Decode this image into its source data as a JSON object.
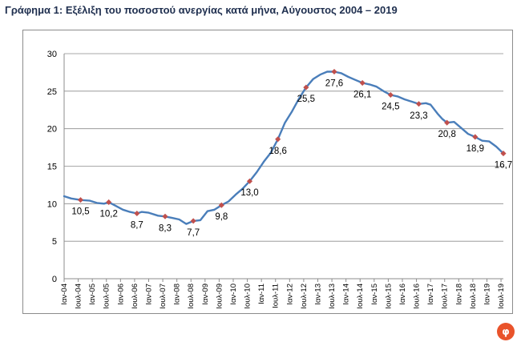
{
  "chart_data": {
    "type": "line",
    "title": "Γράφημα 1: Εξέλιξη του ποσοστού ανεργίας κατά μήνα, Αύγουστος 2004 – 2019",
    "xlabel": "",
    "ylabel": "",
    "ylim": [
      0,
      30
    ],
    "yticks": [
      0,
      5,
      10,
      15,
      20,
      25,
      30
    ],
    "grid": true,
    "legend": "none",
    "line_color": "#4a7eba",
    "marker_color": "#c0504d",
    "x_tick_labels": [
      "Ιαν-04",
      "Ιουλ-04",
      "Ιαν-05",
      "Ιουλ-05",
      "Ιαν-06",
      "Ιουλ-06",
      "Ιαν-07",
      "Ιουλ-07",
      "Ιαν-08",
      "Ιουλ-08",
      "Ιαν-09",
      "Ιουλ-09",
      "Ιαν-10",
      "Ιουλ-10",
      "Ιαν-11",
      "Ιουλ-11",
      "Ιαν-12",
      "Ιουλ-12",
      "Ιαν-13",
      "Ιουλ-13",
      "Ιαν-14",
      "Ιουλ-14",
      "Ιαν-15",
      "Ιουλ-15",
      "Ιαν-16",
      "Ιουλ-16",
      "Ιαν-17",
      "Ιουλ-17",
      "Ιαν-18",
      "Ιουλ-18",
      "Ιαν-19",
      "Ιουλ-19"
    ],
    "anchor_points": [
      [
        "2004-01",
        11.0
      ],
      [
        "2004-04",
        10.7
      ],
      [
        "2004-08",
        10.5
      ],
      [
        "2004-12",
        10.4
      ],
      [
        "2005-03",
        10.1
      ],
      [
        "2005-06",
        10.0
      ],
      [
        "2005-08",
        10.2
      ],
      [
        "2005-11",
        9.7
      ],
      [
        "2006-02",
        9.2
      ],
      [
        "2006-05",
        8.9
      ],
      [
        "2006-08",
        8.7
      ],
      [
        "2006-10",
        8.9
      ],
      [
        "2007-01",
        8.8
      ],
      [
        "2007-05",
        8.4
      ],
      [
        "2007-08",
        8.3
      ],
      [
        "2007-11",
        8.1
      ],
      [
        "2008-02",
        7.9
      ],
      [
        "2008-05",
        7.3
      ],
      [
        "2008-08",
        7.7
      ],
      [
        "2008-11",
        7.8
      ],
      [
        "2009-02",
        9.0
      ],
      [
        "2009-05",
        9.2
      ],
      [
        "2009-08",
        9.8
      ],
      [
        "2009-11",
        10.3
      ],
      [
        "2010-02",
        11.2
      ],
      [
        "2010-05",
        12.0
      ],
      [
        "2010-08",
        13.0
      ],
      [
        "2010-11",
        14.2
      ],
      [
        "2011-02",
        15.6
      ],
      [
        "2011-05",
        16.8
      ],
      [
        "2011-08",
        18.6
      ],
      [
        "2011-11",
        20.8
      ],
      [
        "2012-02",
        22.3
      ],
      [
        "2012-05",
        24.0
      ],
      [
        "2012-08",
        25.5
      ],
      [
        "2012-11",
        26.6
      ],
      [
        "2013-02",
        27.2
      ],
      [
        "2013-05",
        27.6
      ],
      [
        "2013-08",
        27.6
      ],
      [
        "2013-11",
        27.4
      ],
      [
        "2014-02",
        26.9
      ],
      [
        "2014-05",
        26.5
      ],
      [
        "2014-08",
        26.1
      ],
      [
        "2014-11",
        25.9
      ],
      [
        "2015-02",
        25.6
      ],
      [
        "2015-05",
        25.0
      ],
      [
        "2015-08",
        24.5
      ],
      [
        "2015-11",
        24.3
      ],
      [
        "2016-02",
        23.9
      ],
      [
        "2016-05",
        23.6
      ],
      [
        "2016-08",
        23.3
      ],
      [
        "2016-11",
        23.4
      ],
      [
        "2017-01",
        23.2
      ],
      [
        "2017-04",
        22.0
      ],
      [
        "2017-06",
        21.3
      ],
      [
        "2017-08",
        20.8
      ],
      [
        "2017-11",
        20.9
      ],
      [
        "2018-02",
        20.1
      ],
      [
        "2018-05",
        19.3
      ],
      [
        "2018-08",
        18.9
      ],
      [
        "2018-11",
        18.4
      ],
      [
        "2019-02",
        18.3
      ],
      [
        "2019-05",
        17.6
      ],
      [
        "2019-08",
        16.7
      ]
    ],
    "labeled_points": [
      {
        "x": "2004-08",
        "value": 10.5,
        "label": "10,5"
      },
      {
        "x": "2005-08",
        "value": 10.2,
        "label": "10,2"
      },
      {
        "x": "2006-08",
        "value": 8.7,
        "label": "8,7"
      },
      {
        "x": "2007-08",
        "value": 8.3,
        "label": "8,3"
      },
      {
        "x": "2008-08",
        "value": 7.7,
        "label": "7,7"
      },
      {
        "x": "2009-08",
        "value": 9.8,
        "label": "9,8"
      },
      {
        "x": "2010-08",
        "value": 13.0,
        "label": "13,0"
      },
      {
        "x": "2011-08",
        "value": 18.6,
        "label": "18,6"
      },
      {
        "x": "2012-08",
        "value": 25.5,
        "label": "25,5"
      },
      {
        "x": "2013-08",
        "value": 27.6,
        "label": "27,6"
      },
      {
        "x": "2014-08",
        "value": 26.1,
        "label": "26,1"
      },
      {
        "x": "2015-08",
        "value": 24.5,
        "label": "24,5"
      },
      {
        "x": "2016-08",
        "value": 23.3,
        "label": "23,3"
      },
      {
        "x": "2017-08",
        "value": 20.8,
        "label": "20,8"
      },
      {
        "x": "2018-08",
        "value": 18.9,
        "label": "18,9"
      },
      {
        "x": "2019-08",
        "value": 16.7,
        "label": "16,7"
      }
    ]
  },
  "logo": {
    "icon": "newsbomb-logo-icon",
    "text": "ΦΩ",
    "color": "#e9532b"
  }
}
